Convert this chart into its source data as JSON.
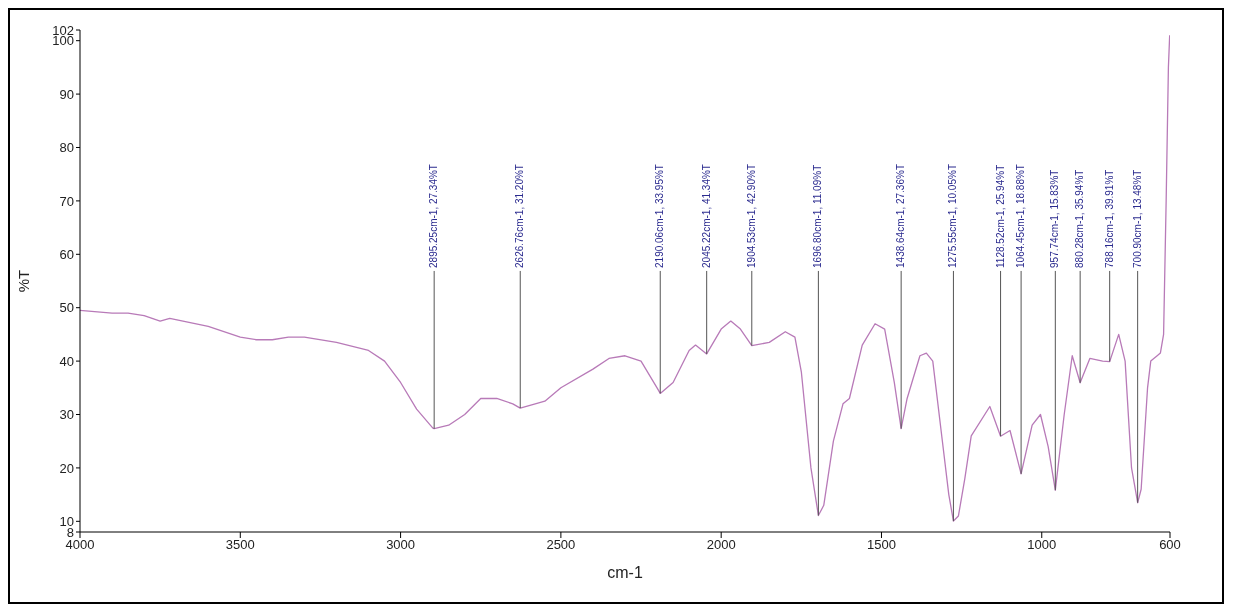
{
  "chart_data": {
    "type": "line",
    "xlabel": "cm-1",
    "ylabel": "%T",
    "xlim": [
      4000,
      600
    ],
    "xticks": [
      4000,
      3500,
      3000,
      2500,
      2000,
      1500,
      1000,
      600
    ],
    "ylim": [
      8,
      102
    ],
    "yticks": [
      8,
      10,
      20,
      30,
      40,
      50,
      60,
      70,
      80,
      90,
      100,
      102
    ],
    "series": [
      {
        "color": "#b87ab8",
        "x": [
          4000,
          3900,
          3850,
          3800,
          3750,
          3720,
          3600,
          3500,
          3450,
          3400,
          3350,
          3300,
          3200,
          3100,
          3050,
          3000,
          2950,
          2900,
          2895.25,
          2850,
          2800,
          2750,
          2700,
          2650,
          2626.76,
          2580,
          2550,
          2500,
          2400,
          2350,
          2300,
          2250,
          2200,
          2190.06,
          2150,
          2100,
          2080,
          2045.22,
          2000,
          1970,
          1940,
          1904.53,
          1850,
          1800,
          1770,
          1750,
          1720,
          1696.8,
          1680,
          1650,
          1620,
          1600,
          1560,
          1520,
          1490,
          1460,
          1438.64,
          1420,
          1380,
          1360,
          1340,
          1310,
          1290,
          1275.55,
          1260,
          1240,
          1220,
          1162,
          1128.52,
          1099,
          1064.45,
          1030,
          1004,
          980,
          957.74,
          930,
          905,
          880.28,
          850,
          810,
          788.16,
          760,
          740,
          720,
          700.9,
          690,
          670,
          660,
          640,
          630,
          620,
          612,
          605,
          601
        ],
        "values": [
          49.5,
          49,
          49,
          48.5,
          47.5,
          48,
          46.5,
          44.5,
          44,
          44,
          44.5,
          44.5,
          43.5,
          42,
          40,
          36,
          31,
          27.5,
          27.34,
          28,
          30,
          33,
          33,
          32,
          31.2,
          32,
          32.5,
          35,
          38.5,
          40.5,
          41,
          40,
          35,
          33.95,
          36,
          42,
          43,
          41.34,
          46,
          47.5,
          46,
          42.9,
          43.5,
          45.5,
          44.5,
          38,
          20,
          11.09,
          13,
          25,
          32,
          33,
          43,
          47,
          46,
          36,
          27.36,
          33,
          41,
          41.5,
          40,
          25,
          15,
          10.05,
          11,
          18,
          26,
          31.5,
          25.94,
          27,
          18.88,
          28,
          30,
          24,
          15.83,
          30,
          41,
          35.94,
          40.5,
          40,
          39.91,
          45,
          40,
          20,
          13.48,
          16,
          35,
          40,
          41,
          41.5,
          45,
          70,
          95,
          101
        ]
      }
    ],
    "annotations": [
      {
        "text": "2895.25cm-1, 27.34%T",
        "x": 2895.25,
        "y": 27.34
      },
      {
        "text": "2626.76cm-1, 31.20%T",
        "x": 2626.76,
        "y": 31.2
      },
      {
        "text": "2190.06cm-1, 33.95%T",
        "x": 2190.06,
        "y": 33.95
      },
      {
        "text": "2045.22cm-1, 41.34%T",
        "x": 2045.22,
        "y": 41.34
      },
      {
        "text": "1904.53cm-1, 42.90%T",
        "x": 1904.53,
        "y": 42.9
      },
      {
        "text": "1696.80cm-1, 11.09%T",
        "x": 1696.8,
        "y": 11.09
      },
      {
        "text": "1438.64cm-1, 27.36%T",
        "x": 1438.64,
        "y": 27.36
      },
      {
        "text": "1275.55cm-1, 10.05%T",
        "x": 1275.55,
        "y": 10.05
      },
      {
        "text": "1128.52cm-1, 25.94%T",
        "x": 1128.52,
        "y": 25.94
      },
      {
        "text": "1064.45cm-1, 18.88%T",
        "x": 1064.45,
        "y": 18.88
      },
      {
        "text": "957.74cm-1, 15.83%T",
        "x": 957.74,
        "y": 15.83
      },
      {
        "text": "880.28cm-1, 35.94%T",
        "x": 880.28,
        "y": 35.94
      },
      {
        "text": "788.16cm-1, 39.91%T",
        "x": 788.16,
        "y": 39.91
      },
      {
        "text": "700.90cm-1, 13.48%T",
        "x": 700.9,
        "y": 13.48
      }
    ]
  }
}
